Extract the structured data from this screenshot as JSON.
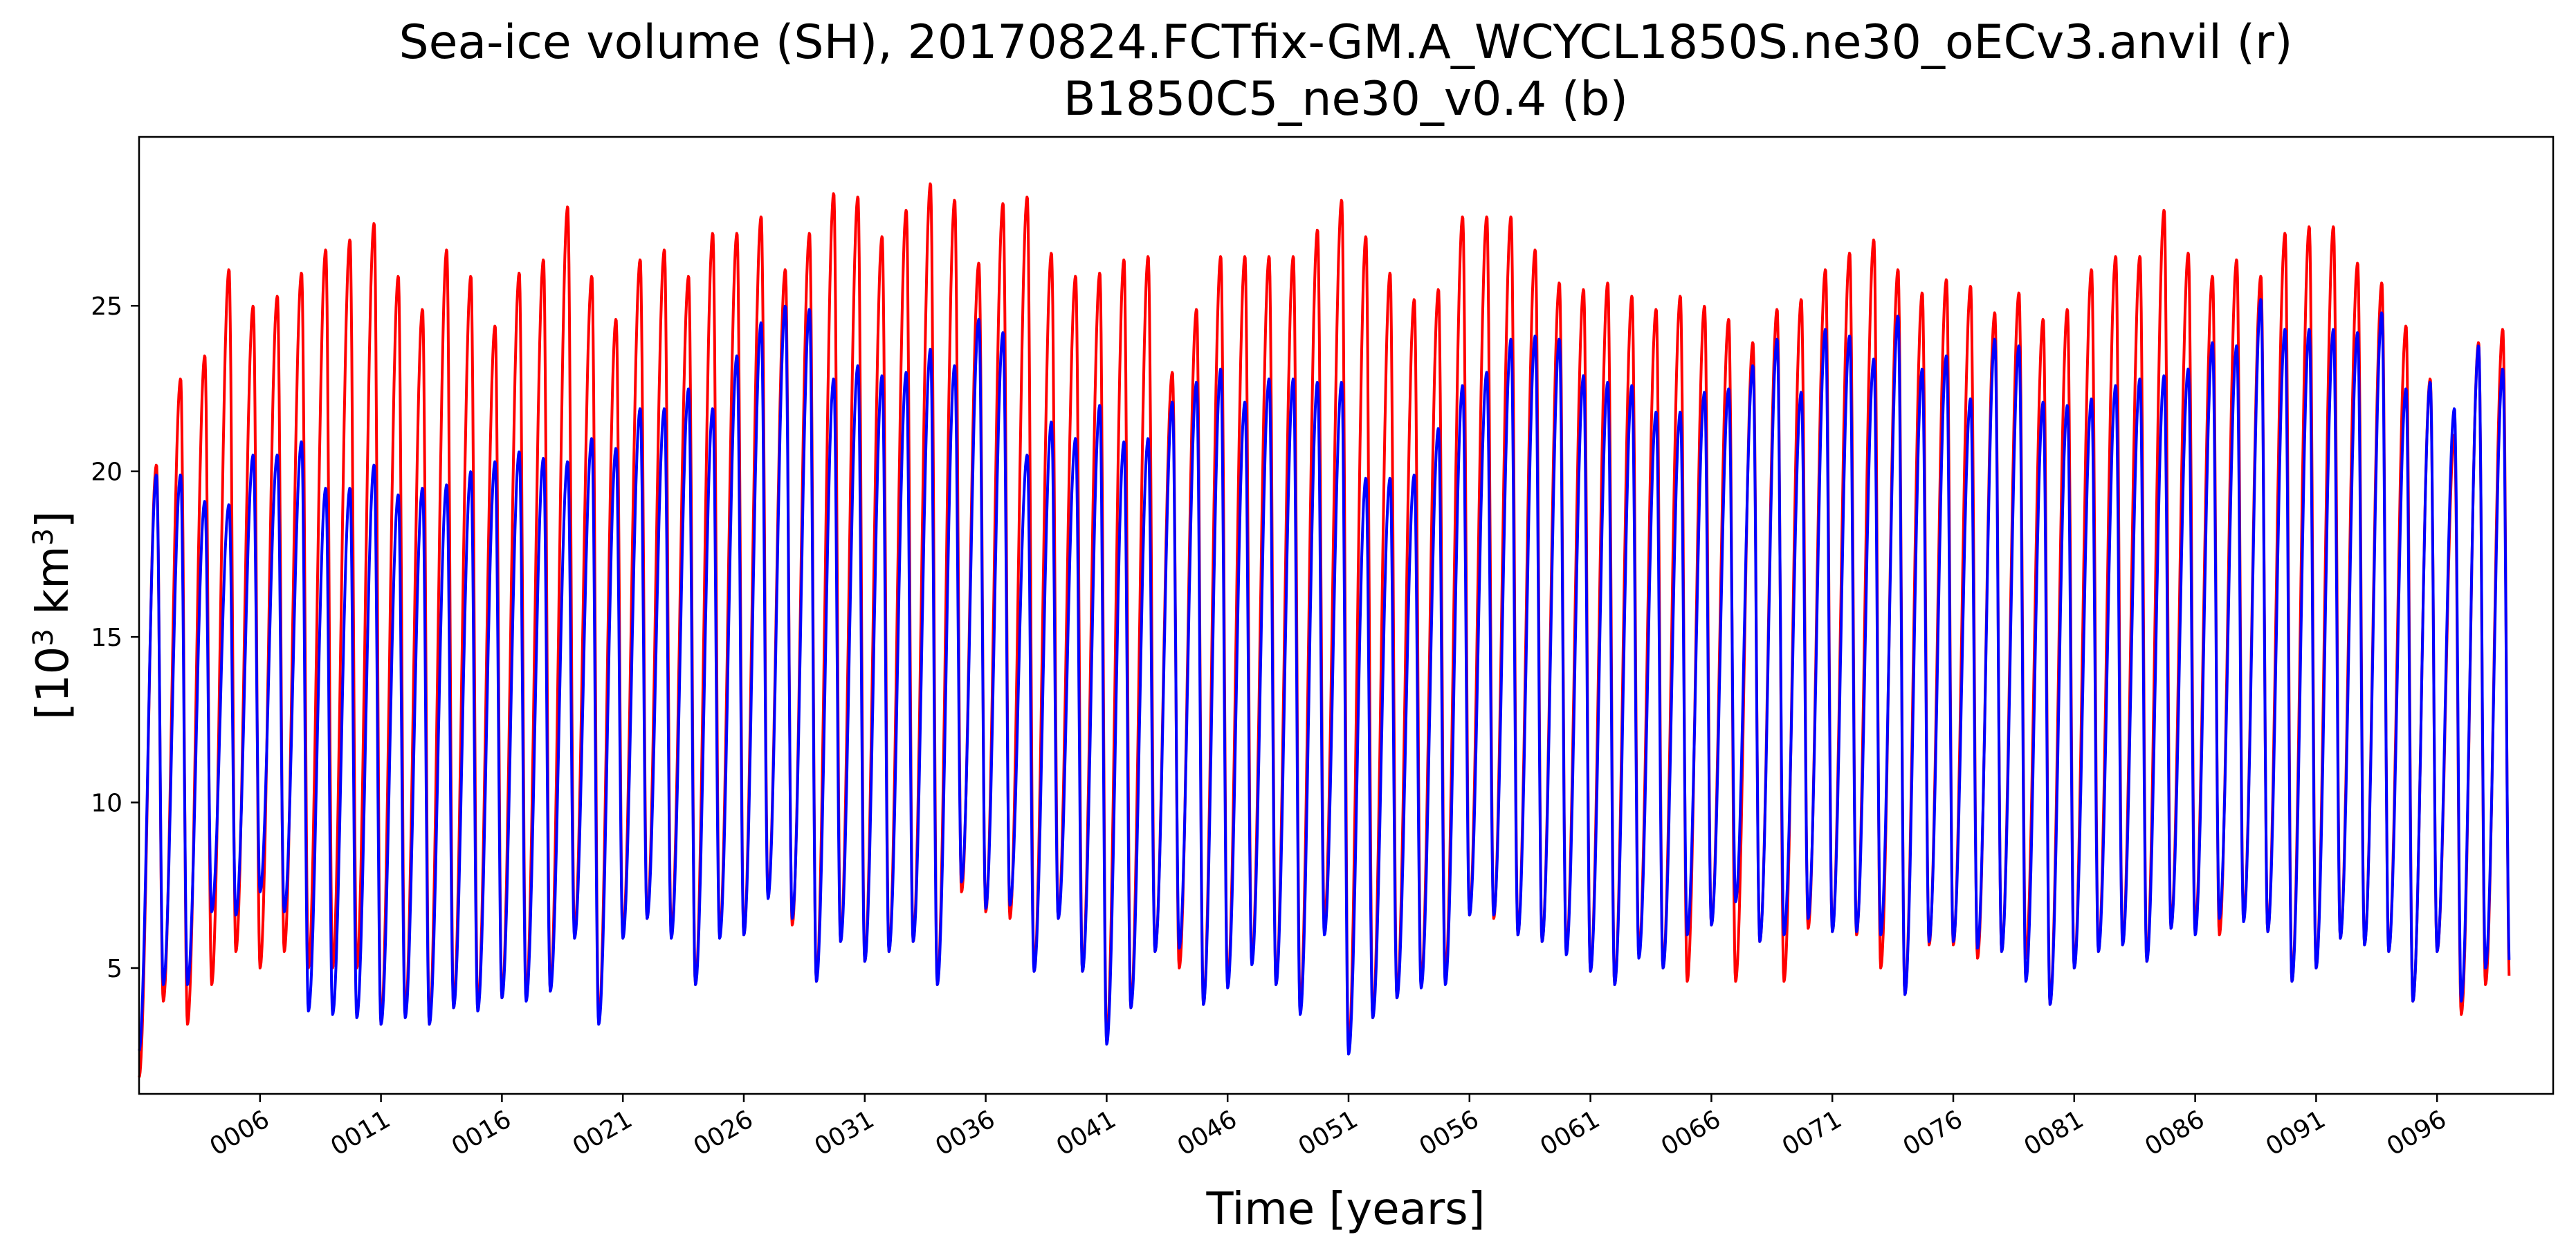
{
  "chart_data": {
    "type": "line",
    "title": "Sea-ice volume (SH), 20170824.FCTfix-GM.A_WCYCL1850S.ne30_oECv3.anvil (r)",
    "subtitle": "B1850C5_ne30_v0.4 (b)",
    "xlabel": "Time [years]",
    "ylabel_base": "[10",
    "ylabel_sup": "3",
    "ylabel_mid": " km",
    "ylabel_sup2": "3",
    "ylabel_end": "]",
    "xlim": [
      1,
      100.8
    ],
    "ylim": [
      1.2,
      30.1
    ],
    "yticks": [
      5,
      10,
      15,
      20,
      25
    ],
    "xtick_labels": [
      "0006",
      "0011",
      "0016",
      "0021",
      "0026",
      "0031",
      "0036",
      "0041",
      "0046",
      "0051",
      "0056",
      "0061",
      "0066",
      "0071",
      "0076",
      "0081",
      "0086",
      "0091",
      "0096"
    ],
    "xtick_years": [
      6,
      11,
      16,
      21,
      26,
      31,
      36,
      41,
      46,
      51,
      56,
      61,
      66,
      71,
      76,
      81,
      86,
      91,
      96
    ],
    "grid": false,
    "series": [
      {
        "name": "20170824.FCTfix-GM.A_WCYCL1850S.ne30_oECv3.anvil (r)",
        "color": "#ff0000",
        "year_start": 1,
        "annual_max": [
          20.2,
          22.8,
          23.5,
          26.1,
          25.0,
          25.3,
          26.0,
          26.7,
          27.0,
          27.5,
          25.9,
          24.9,
          26.7,
          25.9,
          24.4,
          26.0,
          26.4,
          28.0,
          25.9,
          24.6,
          26.4,
          26.7,
          25.9,
          27.2,
          27.2,
          27.7,
          26.1,
          27.2,
          28.4,
          28.3,
          27.1,
          27.9,
          28.7,
          28.2,
          26.3,
          28.1,
          28.3,
          26.6,
          25.9,
          26.0,
          26.4,
          26.5,
          23.0,
          24.9,
          26.5,
          26.5,
          26.5,
          26.5,
          27.3,
          28.2,
          27.1,
          26.0,
          25.2,
          25.5,
          27.7,
          27.7,
          27.7,
          26.7,
          25.7,
          25.5,
          25.7,
          25.3,
          24.9,
          25.3,
          25.0,
          24.6,
          23.9,
          24.9,
          25.2,
          26.1,
          26.6,
          27.0,
          26.1,
          25.4,
          25.8,
          25.6,
          24.8,
          25.4,
          24.6,
          24.9,
          26.1,
          26.5,
          26.5,
          27.9,
          26.6,
          25.9,
          26.4,
          25.9,
          27.2,
          27.4,
          27.4,
          26.3,
          25.7,
          24.4,
          22.8,
          21.1,
          23.9,
          24.3
        ],
        "annual_min": [
          1.7,
          4.0,
          3.3,
          4.5,
          5.5,
          5.0,
          5.5,
          5.0,
          5.0,
          5.0,
          3.3,
          3.6,
          3.3,
          3.8,
          3.8,
          4.1,
          4.1,
          4.3,
          6.0,
          3.4,
          6.0,
          6.5,
          6.0,
          4.5,
          6.0,
          6.0,
          7.2,
          6.3,
          4.6,
          5.8,
          5.2,
          5.5,
          5.8,
          4.5,
          7.3,
          6.7,
          6.5,
          4.9,
          6.5,
          4.9,
          2.8,
          3.8,
          5.5,
          5.0,
          3.9,
          4.5,
          5.2,
          4.5,
          3.8,
          6.3,
          2.5,
          3.5,
          4.1,
          4.5,
          4.7,
          6.6,
          6.5,
          6.0,
          5.8,
          5.5,
          4.9,
          4.5,
          5.4,
          5.0,
          4.6,
          6.3,
          4.6,
          5.8,
          4.6,
          6.2,
          6.1,
          6.0,
          5.0,
          4.2,
          5.7,
          5.7,
          5.3,
          5.5,
          5.3,
          3.9,
          5.0,
          5.5,
          5.7,
          5.2,
          6.2,
          6.2,
          6.0,
          6.5,
          6.1,
          4.6,
          5.0,
          5.9,
          5.7,
          5.5,
          4.0,
          5.5,
          3.6,
          4.5
        ]
      },
      {
        "name": "B1850C5_ne30_v0.4 (b)",
        "color": "#0000ff",
        "year_start": 1,
        "annual_max": [
          19.9,
          19.9,
          19.1,
          19.0,
          20.5,
          20.5,
          20.9,
          19.5,
          19.5,
          20.2,
          19.3,
          19.5,
          19.6,
          20.0,
          20.3,
          20.6,
          20.4,
          20.3,
          21.0,
          20.7,
          21.9,
          21.9,
          22.5,
          21.9,
          23.5,
          24.5,
          25.0,
          24.9,
          22.8,
          23.2,
          22.9,
          23.0,
          23.7,
          23.2,
          24.6,
          24.2,
          20.5,
          21.5,
          21.0,
          22.0,
          20.9,
          21.0,
          22.1,
          22.7,
          23.1,
          22.1,
          22.8,
          22.8,
          22.7,
          22.7,
          19.8,
          19.8,
          19.9,
          21.3,
          22.6,
          23.0,
          24.0,
          24.1,
          24.0,
          22.9,
          22.7,
          22.6,
          21.8,
          21.8,
          22.4,
          22.5,
          23.2,
          24.0,
          22.4,
          24.3,
          24.1,
          23.4,
          24.7,
          23.1,
          23.5,
          22.2,
          24.0,
          23.8,
          22.1,
          22.0,
          22.2,
          22.6,
          22.8,
          22.9,
          23.1,
          23.9,
          23.8,
          25.2,
          24.3,
          24.3,
          24.3,
          24.2,
          24.8,
          22.5,
          22.7,
          21.9,
          23.8,
          23.1
        ],
        "annual_min": [
          2.5,
          4.5,
          4.5,
          6.7,
          6.6,
          7.3,
          6.7,
          3.7,
          3.6,
          3.5,
          3.3,
          3.5,
          3.3,
          3.8,
          3.7,
          4.1,
          4.0,
          4.3,
          5.9,
          3.3,
          5.9,
          6.5,
          5.9,
          4.5,
          5.9,
          6.0,
          7.1,
          6.5,
          4.6,
          5.8,
          5.2,
          5.5,
          5.8,
          4.5,
          7.6,
          6.8,
          6.9,
          4.9,
          6.5,
          4.9,
          2.7,
          3.8,
          5.5,
          5.6,
          3.9,
          4.4,
          5.1,
          4.5,
          3.6,
          6.0,
          2.4,
          3.5,
          4.1,
          4.4,
          4.5,
          6.6,
          6.6,
          6.0,
          5.8,
          5.4,
          4.9,
          4.5,
          5.3,
          5.0,
          6.0,
          6.3,
          7.0,
          5.8,
          6.0,
          6.5,
          6.1,
          6.1,
          6.0,
          4.2,
          5.8,
          5.8,
          5.6,
          5.5,
          4.6,
          3.9,
          5.0,
          5.5,
          5.7,
          5.2,
          6.2,
          6.0,
          6.5,
          6.4,
          6.1,
          4.6,
          5.0,
          5.9,
          5.7,
          5.5,
          4.0,
          5.5,
          4.0,
          5.0
        ]
      }
    ]
  }
}
